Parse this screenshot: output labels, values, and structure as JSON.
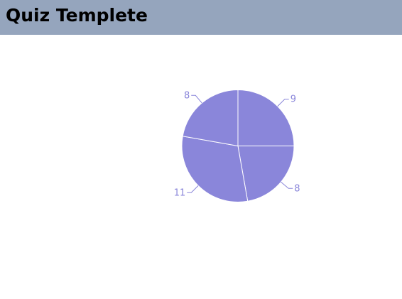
{
  "header": {
    "title": "Quiz Templete",
    "background_color": "#95a5bd"
  },
  "chart_data": {
    "type": "pie",
    "values": [
      8,
      11,
      8,
      9
    ],
    "labels": [
      "8",
      "11",
      "8",
      "9"
    ],
    "slice_color": "#8a86da",
    "label_color": "#8a86da",
    "border_color": "#ffffff"
  }
}
